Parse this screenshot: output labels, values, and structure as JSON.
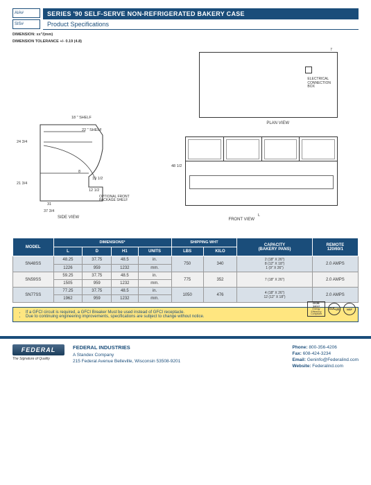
{
  "header": {
    "aia": "AIA#",
    "sis": "SIS#",
    "title": "SERIES '90 SELF-SERVE NON-REFRIGERATED BAKERY CASE",
    "subtitle": "Product Specifications"
  },
  "dim_notes": {
    "l1": "DIMENSION: xx\"/(mm)",
    "l2": "DIMENSION TOLERANCE +/- 0.19 (4.8)"
  },
  "drawing": {
    "plan_view": "PLAN VIEW",
    "side_view": "SIDE VIEW",
    "front_view": "FRONT VIEW",
    "ecb": "ELECTRICAL\nCONNECTION\nBOX",
    "shelf18": "18 \" SHELF",
    "shelf22": "22 \" SHELF",
    "d24_34": "24 3/4",
    "d21_34": "21 3/4",
    "d8": "8",
    "d19_12": "19 1/2",
    "d12_12": "12 1/2",
    "d31": "31",
    "d37_34": "37 3/4",
    "d48_12": "48 1/2",
    "d7": "7",
    "dL": "L",
    "opt_shelf": "OPTIONAL FRONT\nPACKAGE SHELF"
  },
  "table": {
    "headers": {
      "model": "MODEL",
      "dimensions": "DIMENSIONS*",
      "shipping": "SHIPPING WHT",
      "capacity": "CAPACITY\n(BAKERY PANS)",
      "remote": "REMOTE\n120/60/1",
      "L": "L",
      "D": "D",
      "H1": "H1",
      "UNITS": "UNITS",
      "LBS": "LBS",
      "KILO": "KILO"
    },
    "rows": [
      {
        "model": "SN48SS",
        "L": "48.25",
        "D": "37.75",
        "H1": "48.5",
        "u": "in.",
        "Lm": "1226",
        "Dm": "959",
        "H1m": "1232",
        "um": "mm.",
        "lbs": "750",
        "kilo": "340",
        "cap": "2 (18\" X 26\")\n8 (12\" X 18\")\n1 (9\" X 26\")",
        "amps": "2.0 AMPS"
      },
      {
        "model": "SN59SS",
        "L": "59.25",
        "D": "37.75",
        "H1": "48.5",
        "u": "in.",
        "Lm": "1505",
        "Dm": "959",
        "H1m": "1232",
        "um": "mm.",
        "lbs": "775",
        "kilo": "352",
        "cap": "7 (18\" X 26\")",
        "amps": "2.0 AMPS"
      },
      {
        "model": "SN77SS",
        "L": "77.25",
        "D": "37.75",
        "H1": "48.5",
        "u": "in.",
        "Lm": "1962",
        "Dm": "959",
        "H1m": "1232",
        "um": "mm.",
        "lbs": "1050",
        "kilo": "476",
        "cap": "4 (18\" X 26\")\n12 (12\" X 18\")",
        "amps": "2.0 AMPS"
      }
    ]
  },
  "notes": {
    "n1": "If a GFCI circuit is required, a GFCI Breaker Must be used instead of GFCI receptacle.",
    "n2": "Due to continuing engineering improvements, specifications are subject to change without notice."
  },
  "certs": {
    "doe": "DOE 2017",
    "doe2": "Energy Efficiency\nCompliant",
    "ul": "UL",
    "us": "US",
    "nsf": "NSF"
  },
  "footer": {
    "logo": "FEDERAL",
    "tagline": "The Signature of Quality",
    "company": "FEDERAL INDUSTRIES",
    "sub": "A Standex Company",
    "addr": "215 Federal Avenue Belleville, Wisconsin 53508-9201",
    "phone_l": "Phone:",
    "phone": "800-356-4206",
    "fax_l": "Fax:",
    "fax": "608-424-3234",
    "email_l": "Email:",
    "email": "Geninfo@Federalind.com",
    "web_l": "Website:",
    "web": "Federalind.com"
  },
  "colors": {
    "brand": "#1a4d7a",
    "note_bg": "#ffe680"
  }
}
